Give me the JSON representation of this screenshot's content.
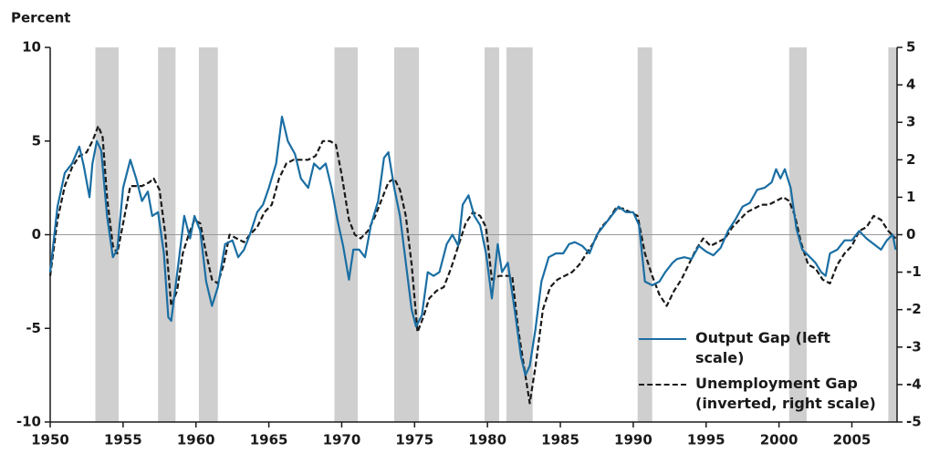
{
  "chart_data": {
    "type": "line",
    "y_axis_label": "Percent",
    "xlim": [
      1950,
      2008.1
    ],
    "xticks": [
      1950,
      1955,
      1960,
      1965,
      1970,
      1975,
      1980,
      1985,
      1990,
      1995,
      2000,
      2005
    ],
    "ylim": [
      -10,
      10
    ],
    "yticks": [
      -10,
      -5,
      0,
      5,
      10
    ],
    "y2lim": [
      -5,
      5
    ],
    "y2ticks": [
      -5,
      -4,
      -3,
      -2,
      -1,
      0,
      1,
      2,
      3,
      4,
      5
    ],
    "recession_color": "#cfcfcf",
    "recessions": [
      [
        1953.1,
        1954.7
      ],
      [
        1957.4,
        1958.6
      ],
      [
        1960.2,
        1961.5
      ],
      [
        1969.5,
        1971.1
      ],
      [
        1973.6,
        1975.3
      ],
      [
        1979.8,
        1980.8
      ],
      [
        1981.3,
        1983.1
      ],
      [
        1990.3,
        1991.3
      ],
      [
        2000.7,
        2001.9
      ],
      [
        2007.5,
        2008.1
      ]
    ],
    "series": [
      {
        "name": "Output Gap (left scale)",
        "color": "#1a6ea3",
        "dash": false,
        "x": [
          1950,
          1950.5,
          1951,
          1951.5,
          1952,
          1952.3,
          1952.7,
          1952.9,
          1953.2,
          1953.5,
          1953.9,
          1954.3,
          1954.6,
          1955,
          1955.5,
          1955.9,
          1956.3,
          1956.7,
          1957,
          1957.4,
          1957.8,
          1958.1,
          1958.3,
          1958.8,
          1959.2,
          1959.6,
          1959.9,
          1960.3,
          1960.7,
          1961.1,
          1961.5,
          1962,
          1962.5,
          1962.9,
          1963.3,
          1963.7,
          1964.2,
          1964.6,
          1965,
          1965.5,
          1965.9,
          1966.3,
          1966.8,
          1967.2,
          1967.7,
          1968.1,
          1968.5,
          1968.9,
          1969.3,
          1969.7,
          1970.1,
          1970.5,
          1970.8,
          1971.2,
          1971.6,
          1972,
          1972.5,
          1972.9,
          1973.2,
          1973.6,
          1974,
          1974.4,
          1974.8,
          1975.1,
          1975.5,
          1975.9,
          1976.3,
          1976.7,
          1977.2,
          1977.6,
          1978,
          1978.3,
          1978.7,
          1979.1,
          1979.5,
          1979.9,
          1980.3,
          1980.7,
          1981,
          1981.4,
          1981.9,
          1982.3,
          1982.6,
          1982.9,
          1983.3,
          1983.7,
          1984.2,
          1984.7,
          1985.2,
          1985.6,
          1986,
          1986.5,
          1987,
          1987.5,
          1988,
          1988.5,
          1989,
          1989.5,
          1990,
          1990.4,
          1990.8,
          1991.3,
          1991.8,
          1992.2,
          1992.7,
          1993,
          1993.5,
          1994,
          1994.5,
          1995,
          1995.5,
          1996,
          1996.5,
          1997,
          1997.5,
          1998,
          1998.5,
          1999,
          1999.5,
          1999.8,
          2000.1,
          2000.4,
          2000.8,
          2001.2,
          2001.6,
          2002,
          2002.5,
          2002.9,
          2003.2,
          2003.5,
          2004,
          2004.5,
          2005,
          2005.5,
          2006,
          2006.5,
          2007,
          2007.4,
          2007.8,
          2008
        ],
        "values": [
          -2,
          1.5,
          3.3,
          3.8,
          4.7,
          3.7,
          2,
          3.8,
          5,
          4.5,
          1,
          -1.2,
          -0.8,
          2.5,
          4,
          3,
          1.8,
          2.3,
          1,
          1.2,
          -1,
          -4.4,
          -4.6,
          -1.5,
          1,
          -0.2,
          1,
          0.2,
          -2.5,
          -3.8,
          -2.8,
          -0.5,
          -0.3,
          -1.2,
          -0.8,
          0,
          1.2,
          1.6,
          2.5,
          3.8,
          6.3,
          5,
          4.3,
          3,
          2.5,
          3.8,
          3.5,
          3.8,
          2.5,
          0.8,
          -0.6,
          -2.4,
          -0.8,
          -0.8,
          -1.2,
          0.5,
          1.8,
          4.1,
          4.4,
          2.5,
          1,
          -1.5,
          -4,
          -4.9,
          -4.3,
          -2,
          -2.2,
          -2,
          -0.5,
          0,
          -0.6,
          1.6,
          2.1,
          1,
          0.5,
          -1,
          -3.4,
          -0.5,
          -2,
          -1.5,
          -4.2,
          -6.5,
          -7.5,
          -7,
          -5,
          -2.5,
          -1.2,
          -1,
          -1,
          -0.5,
          -0.4,
          -0.6,
          -1,
          0,
          0.5,
          1,
          1.5,
          1.2,
          1.2,
          0.5,
          -2.5,
          -2.7,
          -2.5,
          -2,
          -1.5,
          -1.3,
          -1.2,
          -1.3,
          -0.6,
          -0.9,
          -1.1,
          -0.7,
          0.2,
          0.8,
          1.5,
          1.7,
          2.4,
          2.5,
          2.8,
          3.5,
          3,
          3.5,
          2.5,
          0.3,
          -0.8,
          -1.1,
          -1.5,
          -2,
          -2.2,
          -1,
          -0.8,
          -0.3,
          -0.3,
          0.2,
          -0.2,
          -0.5,
          -0.8,
          -0.3,
          0,
          -0.8
        ]
      },
      {
        "name": "Unemployment Gap (inverted, right scale)",
        "color": "#1a1a1a",
        "dash": true,
        "axis": "y2",
        "x": [
          1950,
          1950.5,
          1951,
          1951.5,
          1952,
          1952.5,
          1952.9,
          1953.3,
          1953.6,
          1953.9,
          1954.3,
          1954.6,
          1955,
          1955.5,
          1955.9,
          1956.3,
          1956.8,
          1957.1,
          1957.5,
          1957.9,
          1958.3,
          1958.7,
          1959.1,
          1959.5,
          1959.9,
          1960.3,
          1960.7,
          1961.1,
          1961.5,
          1961.9,
          1962.3,
          1962.8,
          1963.3,
          1963.7,
          1964.2,
          1964.7,
          1965.2,
          1965.7,
          1966.2,
          1966.7,
          1967.2,
          1967.7,
          1968.2,
          1968.7,
          1969.2,
          1969.6,
          1970,
          1970.5,
          1970.9,
          1971.3,
          1971.8,
          1972.3,
          1972.8,
          1973.2,
          1973.6,
          1974,
          1974.4,
          1974.8,
          1975.2,
          1975.6,
          1976,
          1976.5,
          1977,
          1977.5,
          1978,
          1978.5,
          1979,
          1979.5,
          1979.9,
          1980.3,
          1980.8,
          1981.3,
          1981.7,
          1982.1,
          1982.5,
          1982.9,
          1983.3,
          1983.8,
          1984.3,
          1984.8,
          1985.3,
          1985.8,
          1986.3,
          1986.8,
          1987.3,
          1987.8,
          1988.3,
          1988.8,
          1989.3,
          1989.8,
          1990.3,
          1990.8,
          1991.3,
          1991.8,
          1992.3,
          1992.8,
          1993.3,
          1993.8,
          1994.3,
          1994.8,
          1995.3,
          1995.8,
          1996.3,
          1996.8,
          1997.3,
          1997.8,
          1998.3,
          1998.8,
          1999.3,
          1999.8,
          2000.3,
          2000.7,
          2001.1,
          2001.5,
          2002,
          2002.5,
          2003,
          2003.5,
          2004,
          2004.5,
          2005,
          2005.5,
          2006,
          2006.5,
          2007,
          2007.5,
          2008
        ],
        "values": [
          -1.1,
          0.4,
          1.3,
          1.8,
          2.1,
          2.2,
          2.5,
          2.9,
          2.6,
          1,
          -0.3,
          -0.5,
          0.3,
          1.3,
          1.3,
          1.3,
          1.4,
          1.5,
          1.2,
          0,
          -1.9,
          -1.5,
          -0.5,
          0,
          0.4,
          0.3,
          -0.5,
          -1.2,
          -1.3,
          -0.8,
          0,
          -0.1,
          -0.2,
          0,
          0.2,
          0.6,
          0.8,
          1.5,
          1.9,
          2.0,
          2.0,
          2.0,
          2.1,
          2.5,
          2.5,
          2.4,
          1.6,
          0.4,
          0,
          -0.1,
          0.1,
          0.5,
          1.0,
          1.4,
          1.5,
          1.2,
          0.5,
          -0.8,
          -2.6,
          -2.2,
          -1.7,
          -1.5,
          -1.4,
          -0.9,
          -0.3,
          0.3,
          0.6,
          0.5,
          0.2,
          -1.2,
          -1.1,
          -1.1,
          -1.1,
          -2.5,
          -3.5,
          -4.5,
          -3.5,
          -2.0,
          -1.4,
          -1.2,
          -1.1,
          -1,
          -0.8,
          -0.5,
          -0.2,
          0.2,
          0.4,
          0.7,
          0.7,
          0.6,
          0.5,
          -0.5,
          -1.1,
          -1.6,
          -1.9,
          -1.5,
          -1.2,
          -0.8,
          -0.4,
          -0.1,
          -0.3,
          -0.2,
          -0.1,
          0.2,
          0.4,
          0.6,
          0.7,
          0.8,
          0.8,
          0.9,
          1.0,
          0.9,
          0.5,
          -0.2,
          -0.8,
          -0.9,
          -1.2,
          -1.3,
          -0.8,
          -0.5,
          -0.3,
          0.1,
          0.2,
          0.5,
          0.4,
          0.1,
          -0.1
        ]
      }
    ]
  }
}
